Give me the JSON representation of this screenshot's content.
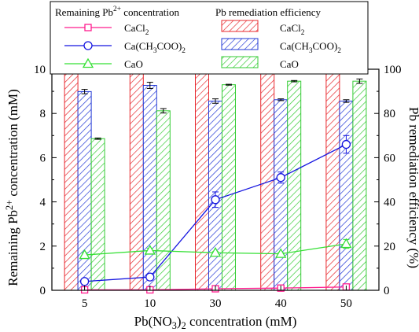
{
  "chart_data": {
    "type": "bar+line",
    "categories": [
      "5",
      "10",
      "30",
      "40",
      "50"
    ],
    "xlabel": "Pb(NO3)2 concentration (mM)",
    "ylabel_left": "Remaining Pb2+ concentration (mM)",
    "ylabel_right": "Pb remediation efficiency (%)",
    "ylim_left": [
      0,
      10
    ],
    "yticks_left": [
      "0",
      "2",
      "4",
      "6",
      "8",
      "10"
    ],
    "ylim_right": [
      0,
      100
    ],
    "yticks_right": [
      "0",
      "20",
      "40",
      "60",
      "80",
      "100"
    ],
    "grid": false,
    "legend": {
      "placement": "top",
      "heading_left": "Remaining Pb2+ concentration",
      "heading_right": "Pb remediation efficiency"
    },
    "bar_series": [
      {
        "name": "CaCl2",
        "values": [
          98.6,
          98.6,
          98.6,
          98.6,
          98.6
        ],
        "errors": [
          0,
          0,
          0,
          0,
          0
        ],
        "color": "#e8282e"
      },
      {
        "name": "Ca(CH3COO)2",
        "values": [
          89.9,
          92.7,
          85.6,
          86.2,
          85.6
        ],
        "errors": [
          1.0,
          1.4,
          1.0,
          0.4,
          0.6
        ],
        "color": "#2238d6"
      },
      {
        "name": "CaO",
        "values": [
          68.6,
          81.2,
          93.0,
          94.6,
          94.6
        ],
        "errors": [
          0.3,
          1.0,
          0.2,
          0.3,
          1.0
        ],
        "color": "#33cc33"
      }
    ],
    "line_series": [
      {
        "name": "CaCl2",
        "values": [
          0.02,
          0.02,
          0.07,
          0.1,
          0.15
        ],
        "errors": [
          0.05,
          0.05,
          0.05,
          0.05,
          0.05
        ],
        "color": "#ff1c8e",
        "marker": "square"
      },
      {
        "name": "Ca(CH3COO)2",
        "values": [
          0.4,
          0.6,
          4.1,
          5.1,
          6.6
        ],
        "errors": [
          0.1,
          0.1,
          0.35,
          0.25,
          0.4
        ],
        "color": "#1414e0",
        "marker": "circle"
      },
      {
        "name": "CaO",
        "values": [
          1.6,
          1.8,
          1.7,
          1.65,
          2.1
        ],
        "errors": [
          0.1,
          0.1,
          0.05,
          0.05,
          0.2
        ],
        "color": "#35e035",
        "marker": "triangle"
      }
    ]
  }
}
